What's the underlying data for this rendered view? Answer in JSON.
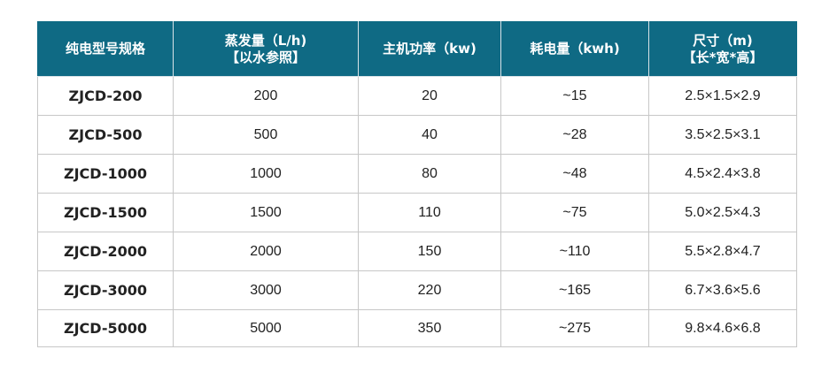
{
  "headers": [
    {
      "line1": "纯电型号规格",
      "line2": ""
    },
    {
      "line1": "蒸发量（L/h)",
      "line2": "【以水参照】"
    },
    {
      "line1": "主机功率（kw)",
      "line2": ""
    },
    {
      "line1": "耗电量（kwh)",
      "line2": ""
    },
    {
      "line1": "尺寸（m)",
      "line2": "【长*宽*高】"
    }
  ],
  "rows": [
    {
      "model": "ZJCD-200",
      "evaporation": "200",
      "power": "20",
      "consumption": "~15",
      "size": "2.5×1.5×2.9"
    },
    {
      "model": "ZJCD-500",
      "evaporation": "500",
      "power": "40",
      "consumption": "~28",
      "size": "3.5×2.5×3.1"
    },
    {
      "model": "ZJCD-1000",
      "evaporation": "1000",
      "power": "80",
      "consumption": "~48",
      "size": "4.5×2.4×3.8"
    },
    {
      "model": "ZJCD-1500",
      "evaporation": "1500",
      "power": "110",
      "consumption": "~75",
      "size": "5.0×2.5×4.3"
    },
    {
      "model": "ZJCD-2000",
      "evaporation": "2000",
      "power": "150",
      "consumption": "~110",
      "size": "5.5×2.8×4.7"
    },
    {
      "model": "ZJCD-3000",
      "evaporation": "3000",
      "power": "220",
      "consumption": "~165",
      "size": "6.7×3.6×5.6"
    },
    {
      "model": "ZJCD-5000",
      "evaporation": "5000",
      "power": "350",
      "consumption": "~275",
      "size": "9.8×4.6×6.8"
    }
  ],
  "colors": {
    "header_background": "#0f6a84",
    "header_text": "#ffffff",
    "border": "#c7c7c7"
  }
}
